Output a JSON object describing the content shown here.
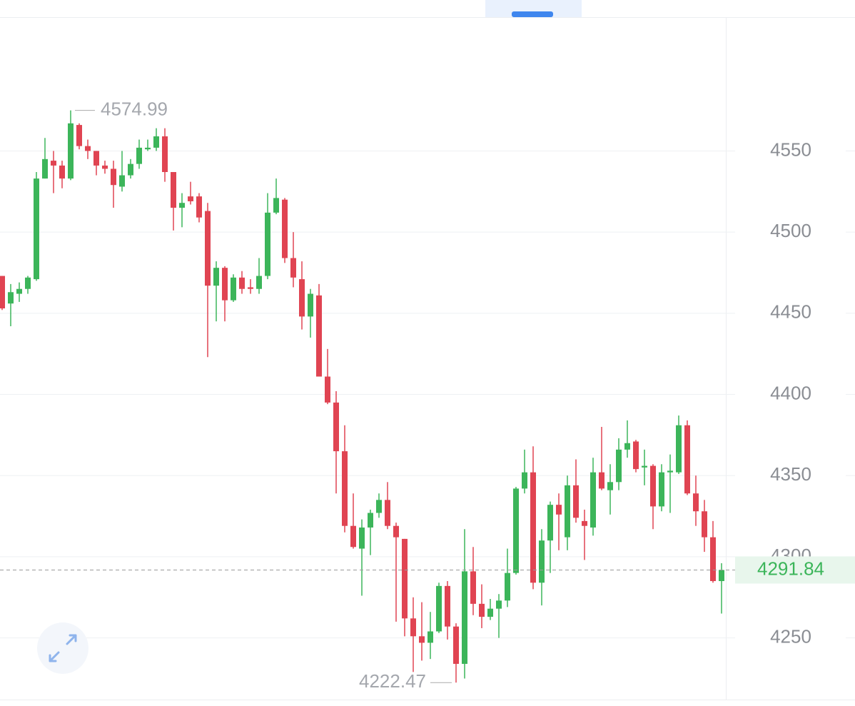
{
  "chart_data": {
    "type": "candlestick",
    "up_color": "#3cb55a",
    "down_color": "#e04452",
    "grid": true,
    "ylim": [
      4212,
      4632
    ],
    "yticks": [
      4250,
      4300,
      4350,
      4400,
      4450,
      4500,
      4550
    ],
    "open": [
      4473,
      4456,
      4462,
      4465,
      4471,
      4533,
      4544,
      4541,
      4533,
      4566,
      4553,
      4550,
      4541,
      4539,
      4528,
      4535,
      4542,
      4551,
      4552,
      4559,
      4537,
      4515,
      4522,
      4522,
      4513,
      4467,
      4478,
      4458,
      4472,
      4466,
      4465,
      4473,
      4512,
      4520,
      4484,
      4471,
      4448,
      4461,
      4411,
      4395,
      4365,
      4319,
      4305,
      4318,
      4327,
      4335,
      4319,
      4311,
      4262,
      4251,
      4247,
      4254,
      4282,
      4257,
      4234,
      4291,
      4271,
      4263,
      4268,
      4273,
      4290,
      4342,
      4352,
      4284,
      4310,
      4332,
      4312,
      4344,
      4322,
      4318,
      4352,
      4341,
      4346,
      4366,
      4371,
      4355,
      4356,
      4331,
      4352,
      4352,
      4381,
      4339,
      4328,
      4312,
      4285
    ],
    "high": [
      4473,
      4468,
      4469,
      4473,
      4537,
      4558,
      4550,
      4544,
      4574.99,
      4567,
      4557,
      4550,
      4544,
      4544,
      4550,
      4545,
      4557,
      4557,
      4564,
      4564,
      4537,
      4524,
      4531,
      4524,
      4518,
      4482,
      4479,
      4474,
      4476,
      4471,
      4484,
      4524,
      4533,
      4521,
      4500,
      4482,
      4465,
      4468,
      4428,
      4402,
      4381,
      4339,
      4323,
      4329,
      4339,
      4346,
      4321,
      4311,
      4275,
      4272,
      4266,
      4284,
      4285,
      4259,
      4317,
      4306,
      4283,
      4274,
      4277,
      4305,
      4343,
      4366,
      4368,
      4317,
      4334,
      4339,
      4350,
      4360,
      4329,
      4361,
      4380,
      4357,
      4373,
      4384,
      4372,
      4366,
      4357,
      4357,
      4363,
      4387,
      4384,
      4350,
      4335,
      4322,
      4296
    ],
    "low": [
      4452,
      4442,
      4457,
      4462,
      4470,
      4533,
      4524,
      4527,
      4532,
      4551,
      4545,
      4535,
      4536,
      4515,
      4525,
      4533,
      4539,
      4550,
      4550,
      4531,
      4501,
      4503,
      4517,
      4506,
      4423,
      4445,
      4445,
      4457,
      4462,
      4462,
      4462,
      4471,
      4511,
      4481,
      4466,
      4440,
      4435,
      4411,
      4394,
      4339,
      4315,
      4305,
      4276,
      4301,
      4324,
      4317,
      4260,
      4251,
      4229,
      4236,
      4237,
      4253,
      4249,
      4222.47,
      4225,
      4264,
      4256,
      4261,
      4250,
      4269,
      4289,
      4339,
      4280,
      4270,
      4290,
      4304,
      4304,
      4321,
      4298,
      4313,
      4341,
      4326,
      4341,
      4361,
      4352,
      4344,
      4317,
      4328,
      4327,
      4351,
      4338,
      4319,
      4303,
      4284,
      4265
    ],
    "close": [
      4453,
      4463,
      4465,
      4472,
      4533,
      4545,
      4541,
      4533,
      4567,
      4553,
      4550,
      4541,
      4539,
      4529,
      4535,
      4542,
      4552,
      4552,
      4559,
      4537,
      4515,
      4518,
      4519,
      4509,
      4467,
      4478,
      4458,
      4472,
      4465,
      4465,
      4473,
      4512,
      4521,
      4484,
      4472,
      4448,
      4462,
      4411,
      4395,
      4365,
      4319,
      4306,
      4318,
      4327,
      4335,
      4319,
      4312,
      4262,
      4251,
      4247,
      4254,
      4282,
      4257,
      4234,
      4291,
      4271,
      4263,
      4268,
      4273,
      4290,
      4342,
      4352,
      4284,
      4310,
      4332,
      4326,
      4344,
      4324,
      4319,
      4352,
      4342,
      4346,
      4366,
      4370,
      4354,
      4356,
      4331,
      4352,
      4353,
      4381,
      4339,
      4328,
      4312,
      4285,
      4291.84
    ]
  }
}
